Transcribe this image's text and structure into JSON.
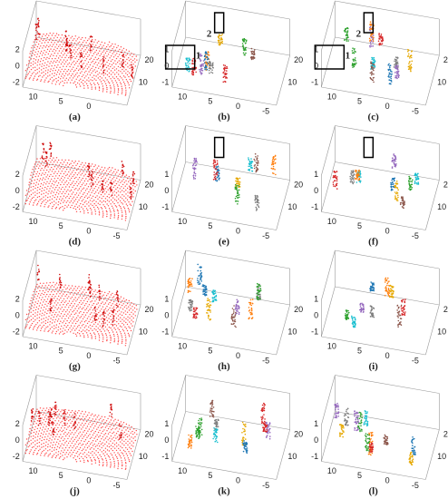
{
  "panels": [
    {
      "label": "(a)",
      "zticks": [
        2,
        0,
        -2
      ],
      "xticks": [
        10,
        5,
        0
      ],
      "yticks": [
        20,
        10
      ]
    },
    {
      "label": "(b)",
      "zticks": [
        1,
        0,
        -1
      ],
      "xticks": [
        10,
        5,
        0,
        -5
      ],
      "yticks": [
        20,
        10
      ],
      "annotations": [
        "2",
        "1"
      ]
    },
    {
      "label": "(c)",
      "zticks": [
        1,
        0,
        -1
      ],
      "xticks": [
        10,
        5,
        0,
        -5
      ],
      "yticks": [
        20,
        10
      ],
      "annotations": [
        "2",
        "1"
      ]
    },
    {
      "label": "(d)",
      "zticks": [
        2,
        0,
        -2
      ],
      "xticks": [
        10,
        5,
        0,
        -5
      ],
      "yticks": [
        20,
        10
      ]
    },
    {
      "label": "(e)",
      "zticks": [
        1,
        0,
        -1
      ],
      "xticks": [
        10,
        5,
        0,
        -5
      ],
      "yticks": [
        20,
        10
      ]
    },
    {
      "label": "(f)",
      "zticks": [
        1,
        0,
        -1
      ],
      "xticks": [
        10,
        5,
        0,
        -5
      ],
      "yticks": [
        20,
        10
      ]
    },
    {
      "label": "(g)",
      "zticks": [
        2,
        0,
        -2
      ],
      "xticks": [
        10,
        5,
        0,
        -5
      ],
      "yticks": [
        20,
        10
      ]
    },
    {
      "label": "(h)",
      "zticks": [
        1,
        0,
        -1
      ],
      "xticks": [
        10,
        5,
        0,
        -5
      ],
      "yticks": [
        20,
        10
      ]
    },
    {
      "label": "(i)",
      "zticks": [
        1,
        0,
        -1
      ],
      "xticks": [
        10,
        5,
        0,
        -5
      ],
      "yticks": [
        20,
        10
      ]
    },
    {
      "label": "(j)",
      "zticks": [
        2,
        0,
        -2
      ],
      "xticks": [
        10,
        5,
        0,
        -5
      ],
      "yticks": [
        20,
        10
      ]
    },
    {
      "label": "(k)",
      "zticks": [
        1,
        0,
        -1
      ],
      "xticks": [
        10,
        5,
        0,
        -5
      ],
      "yticks": [
        20,
        10
      ]
    },
    {
      "label": "(l)",
      "zticks": [
        1,
        0,
        -1
      ],
      "xticks": [
        10,
        5,
        0,
        -5
      ],
      "yticks": [
        20,
        10
      ]
    }
  ]
}
